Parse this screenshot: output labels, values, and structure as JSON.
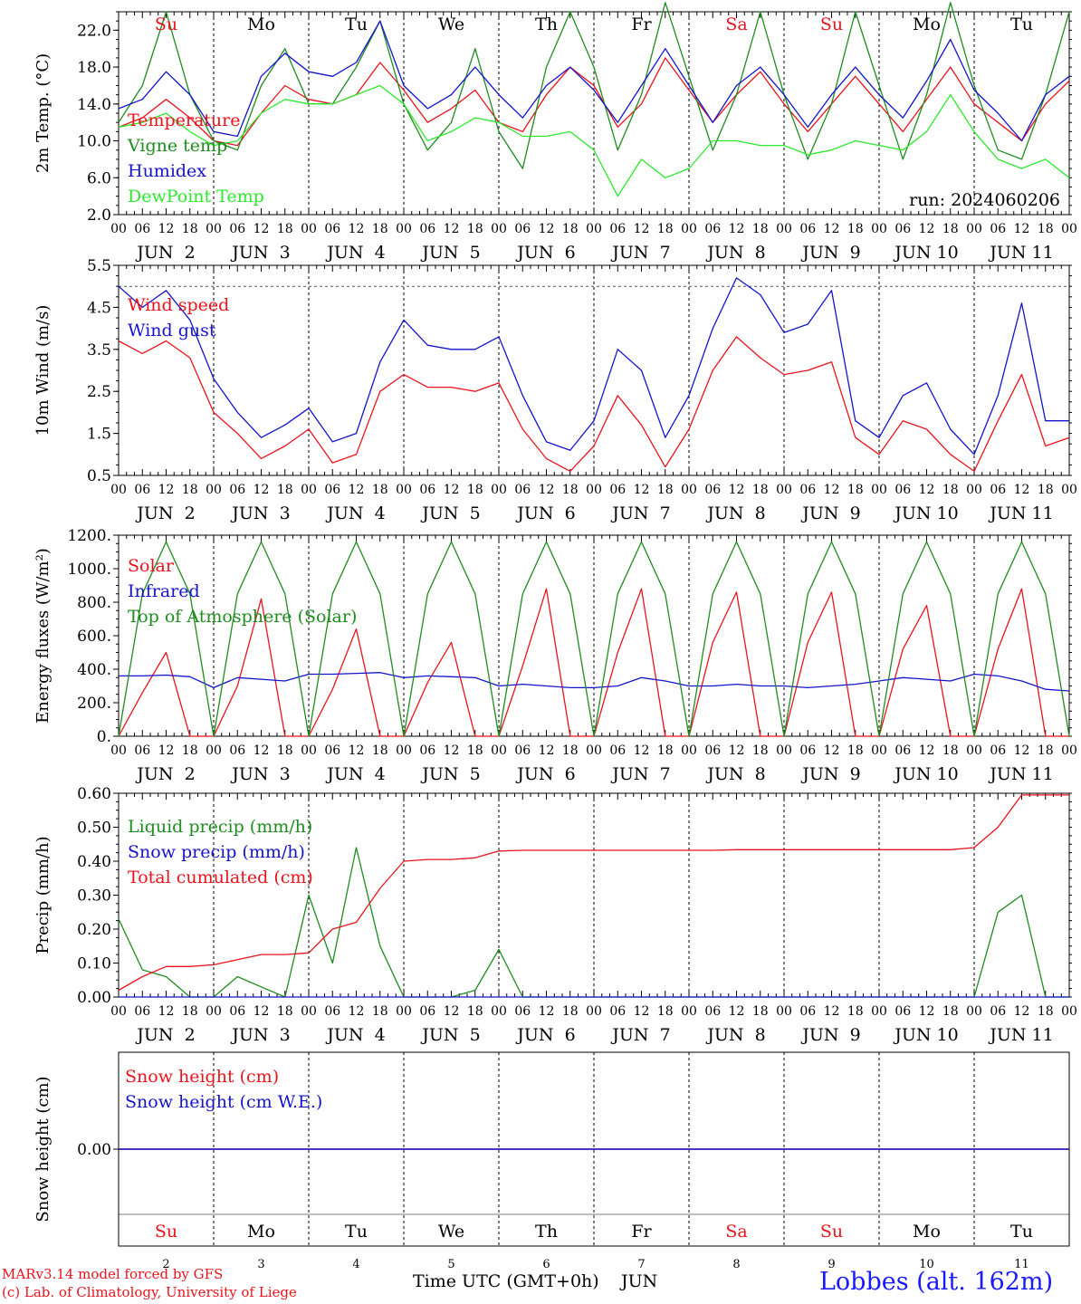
{
  "days_abbr": [
    "Su",
    "Mo",
    "Tu",
    "We",
    "Th",
    "Fr",
    "Sa",
    "Su",
    "Mo",
    "Tu"
  ],
  "day_nums": [
    "2",
    "3",
    "4",
    "5",
    "6",
    "7",
    "8",
    "9",
    "10",
    "11"
  ],
  "date_labels": [
    "JUN  2",
    "JUN  3",
    "JUN  4",
    "JUN  5",
    "JUN  6",
    "JUN  7",
    "JUN  8",
    "JUN  9",
    "JUN 10",
    "JUN 11"
  ],
  "hour_labels": [
    "00",
    "06",
    "12",
    "18"
  ],
  "hour_label_end": "00",
  "weekend_color": "#e8141c",
  "weekday_color": "#000000",
  "weekend_days": [
    "Su",
    "Sa"
  ],
  "footer": {
    "model": "MARv3.14 model forced by GFS",
    "copyright": "(c) Lab. of Climatology, University of Liege",
    "time_axis": "Time UTC (GMT+0h)",
    "month": "JUN",
    "station": "Lobbes (alt. 162m)"
  },
  "chart_data": [
    {
      "type": "line",
      "id": "temp",
      "ylabel": "2m Temp. (°C)",
      "ylim": [
        2,
        24
      ],
      "yticks": [
        "2.0",
        "6.0",
        "10.0",
        "14.0",
        "18.0",
        "22.0"
      ],
      "annotation": "run: 2024060206",
      "x_hours": [
        0,
        6,
        12,
        18,
        24,
        30,
        36,
        42,
        48,
        54,
        60,
        66,
        72,
        78,
        84,
        90,
        96,
        102,
        108,
        114,
        120,
        126,
        132,
        138,
        144,
        150,
        156,
        162,
        168,
        174,
        180,
        186,
        192,
        198,
        204,
        210,
        216,
        222,
        228,
        234,
        240
      ],
      "series": [
        {
          "name": "Temperature",
          "color": "#e8141c",
          "values": [
            11.5,
            12.5,
            14.5,
            12.5,
            10,
            9.5,
            13,
            16,
            14.5,
            14,
            15,
            18.5,
            15.5,
            12,
            13.5,
            15.5,
            12,
            11,
            15,
            18,
            16,
            11.5,
            14,
            19,
            15.5,
            12,
            15,
            17.5,
            14,
            11,
            14,
            17,
            14,
            11,
            14.5,
            18,
            14,
            12,
            10,
            14,
            16.5
          ]
        },
        {
          "name": "Vigne temp",
          "color": "#1e8c1e",
          "values": [
            12,
            16,
            24,
            15,
            10,
            9,
            16,
            20,
            14,
            14,
            18,
            23,
            14,
            9,
            12,
            20,
            11,
            7,
            18,
            24,
            18,
            9,
            15,
            25,
            17,
            9,
            15,
            24,
            15,
            8,
            14,
            24,
            16,
            8,
            15,
            25,
            16,
            9,
            8,
            15,
            24
          ]
        },
        {
          "name": "Humidex",
          "color": "#1414cc",
          "values": [
            13.5,
            14.5,
            17.5,
            15,
            11,
            10.5,
            17,
            19.5,
            17.5,
            17,
            18.5,
            23,
            16,
            13.5,
            15,
            18,
            15,
            12.5,
            16,
            18,
            15.5,
            12,
            16,
            20,
            16,
            12,
            16,
            18,
            15,
            11.5,
            15,
            18,
            15,
            12.5,
            16.5,
            21,
            15.5,
            13,
            10,
            15,
            17
          ]
        },
        {
          "name": "DewPoint Temp",
          "color": "#2ee82e",
          "values": [
            11.5,
            12,
            13,
            11,
            9.5,
            10,
            13,
            14.5,
            14,
            14,
            15,
            16,
            14,
            10,
            11,
            12.5,
            12,
            10.5,
            10.5,
            11,
            9,
            4,
            8,
            6,
            7,
            10,
            10,
            9.5,
            9.5,
            8.5,
            9,
            10,
            9.5,
            9,
            11,
            15,
            11,
            8,
            7,
            8,
            6
          ]
        }
      ]
    },
    {
      "type": "line",
      "id": "wind",
      "ylabel": "10m Wind (m/s)",
      "ylim": [
        0.5,
        5.5
      ],
      "yticks": [
        "0.5",
        "1.5",
        "2.5",
        "3.5",
        "4.5",
        "5.5"
      ],
      "x_hours": [
        0,
        6,
        12,
        18,
        24,
        30,
        36,
        42,
        48,
        54,
        60,
        66,
        72,
        78,
        84,
        90,
        96,
        102,
        108,
        114,
        120,
        126,
        132,
        138,
        144,
        150,
        156,
        162,
        168,
        174,
        180,
        186,
        192,
        198,
        204,
        210,
        216,
        222,
        228,
        234,
        240
      ],
      "series": [
        {
          "name": "Wind speed",
          "color": "#e8141c",
          "values": [
            3.7,
            3.4,
            3.7,
            3.3,
            2.0,
            1.5,
            0.9,
            1.2,
            1.6,
            0.8,
            1.0,
            2.5,
            2.9,
            2.6,
            2.6,
            2.5,
            2.7,
            1.6,
            0.9,
            0.6,
            1.2,
            2.4,
            1.7,
            0.7,
            1.6,
            3.0,
            3.8,
            3.3,
            2.9,
            3.0,
            3.2,
            1.4,
            1.0,
            1.8,
            1.6,
            1.0,
            0.6,
            1.8,
            2.9,
            1.2,
            1.4
          ]
        },
        {
          "name": "Wind gust",
          "color": "#1414cc",
          "values": [
            5.0,
            4.5,
            4.9,
            4.2,
            2.8,
            2.0,
            1.4,
            1.7,
            2.1,
            1.3,
            1.5,
            3.2,
            4.2,
            3.6,
            3.5,
            3.5,
            3.8,
            2.4,
            1.3,
            1.1,
            1.8,
            3.5,
            3.0,
            1.4,
            2.4,
            4.0,
            5.2,
            4.8,
            3.9,
            4.1,
            4.9,
            1.8,
            1.4,
            2.4,
            2.7,
            1.6,
            1.0,
            2.4,
            4.6,
            1.8,
            1.8
          ]
        }
      ]
    },
    {
      "type": "line",
      "id": "energy",
      "ylabel": "Energy fluxes (W/m²)",
      "ylim": [
        0,
        1200
      ],
      "yticks": [
        "0.",
        "200.",
        "400.",
        "600.",
        "800.",
        "1000.",
        "1200."
      ],
      "x_hours": [
        0,
        6,
        12,
        18,
        24,
        30,
        36,
        42,
        48,
        54,
        60,
        66,
        72,
        78,
        84,
        90,
        96,
        102,
        108,
        114,
        120,
        126,
        132,
        138,
        144,
        150,
        156,
        162,
        168,
        174,
        180,
        186,
        192,
        198,
        204,
        210,
        216,
        222,
        228,
        234,
        240
      ],
      "series": [
        {
          "name": "Solar",
          "color": "#e8141c",
          "values": [
            0,
            260,
            500,
            0,
            0,
            300,
            820,
            0,
            0,
            280,
            640,
            0,
            0,
            320,
            560,
            0,
            0,
            420,
            880,
            0,
            0,
            500,
            880,
            0,
            0,
            560,
            860,
            0,
            0,
            560,
            860,
            0,
            0,
            520,
            780,
            0,
            0,
            520,
            880,
            0,
            0
          ]
        },
        {
          "name": "Infrared",
          "color": "#1414cc",
          "values": [
            360,
            360,
            365,
            355,
            290,
            350,
            340,
            330,
            370,
            370,
            375,
            380,
            350,
            360,
            355,
            350,
            300,
            310,
            300,
            290,
            290,
            300,
            350,
            330,
            300,
            300,
            310,
            300,
            300,
            290,
            300,
            310,
            330,
            350,
            340,
            330,
            370,
            360,
            330,
            280,
            270
          ]
        },
        {
          "name": "Top of Atmosphere (Solar)",
          "color": "#1e8c1e",
          "values": [
            0,
            850,
            1160,
            850,
            0,
            850,
            1160,
            850,
            0,
            850,
            1160,
            850,
            0,
            850,
            1160,
            850,
            0,
            850,
            1160,
            850,
            0,
            850,
            1160,
            850,
            0,
            850,
            1160,
            850,
            0,
            850,
            1160,
            850,
            0,
            850,
            1160,
            850,
            0,
            850,
            1160,
            850,
            0
          ]
        }
      ]
    },
    {
      "type": "line",
      "id": "precip",
      "ylabel": "Precip (mm/h)",
      "ylim": [
        0,
        0.6
      ],
      "yticks": [
        "0.00",
        "0.10",
        "0.20",
        "0.30",
        "0.40",
        "0.50",
        "0.60"
      ],
      "x_hours": [
        0,
        6,
        12,
        18,
        24,
        30,
        36,
        42,
        48,
        54,
        60,
        66,
        72,
        78,
        84,
        90,
        96,
        102,
        108,
        114,
        120,
        126,
        132,
        138,
        144,
        150,
        156,
        162,
        168,
        174,
        180,
        186,
        192,
        198,
        204,
        210,
        216,
        222,
        228,
        234,
        240
      ],
      "series": [
        {
          "name": "Liquid precip (mm/h)",
          "color": "#1e8c1e",
          "values": [
            0.23,
            0.08,
            0.06,
            0.0,
            0.0,
            0.06,
            0.03,
            0.0,
            0.3,
            0.1,
            0.44,
            0.15,
            0.0,
            0.0,
            0.0,
            0.02,
            0.14,
            0.0,
            0.0,
            0.0,
            0.0,
            0.0,
            0.0,
            0.0,
            0.0,
            0.0,
            0.0,
            0.0,
            0.0,
            0.0,
            0.0,
            0.0,
            0.0,
            0.0,
            0.0,
            0.0,
            0.0,
            0.25,
            0.3,
            0.0,
            0.0
          ]
        },
        {
          "name": "Snow precip (mm/h)",
          "color": "#1414cc",
          "values": [
            0,
            0,
            0,
            0,
            0,
            0,
            0,
            0,
            0,
            0,
            0,
            0,
            0,
            0,
            0,
            0,
            0,
            0,
            0,
            0,
            0,
            0,
            0,
            0,
            0,
            0,
            0,
            0,
            0,
            0,
            0,
            0,
            0,
            0,
            0,
            0,
            0,
            0,
            0,
            0,
            0
          ]
        },
        {
          "name": "Total cumulated (cm)",
          "color": "#e8141c",
          "values": [
            0.02,
            0.06,
            0.09,
            0.09,
            0.095,
            0.11,
            0.125,
            0.125,
            0.13,
            0.2,
            0.22,
            0.32,
            0.4,
            0.405,
            0.405,
            0.41,
            0.43,
            0.432,
            0.432,
            0.432,
            0.432,
            0.432,
            0.432,
            0.432,
            0.432,
            0.432,
            0.434,
            0.434,
            0.434,
            0.434,
            0.434,
            0.434,
            0.434,
            0.434,
            0.434,
            0.434,
            0.44,
            0.5,
            0.595,
            0.595,
            0.595
          ]
        }
      ]
    },
    {
      "type": "line",
      "id": "snow",
      "ylabel": "Snow height (cm)",
      "ylim": [
        -1,
        1
      ],
      "yticks": [
        "0.00"
      ],
      "x_hours": [
        0,
        240
      ],
      "series": [
        {
          "name": "Snow height (cm)",
          "color": "#e8141c",
          "values": [
            0,
            0
          ]
        },
        {
          "name": "Snow height (cm W.E.)",
          "color": "#1414cc",
          "values": [
            0,
            0
          ]
        }
      ]
    }
  ]
}
